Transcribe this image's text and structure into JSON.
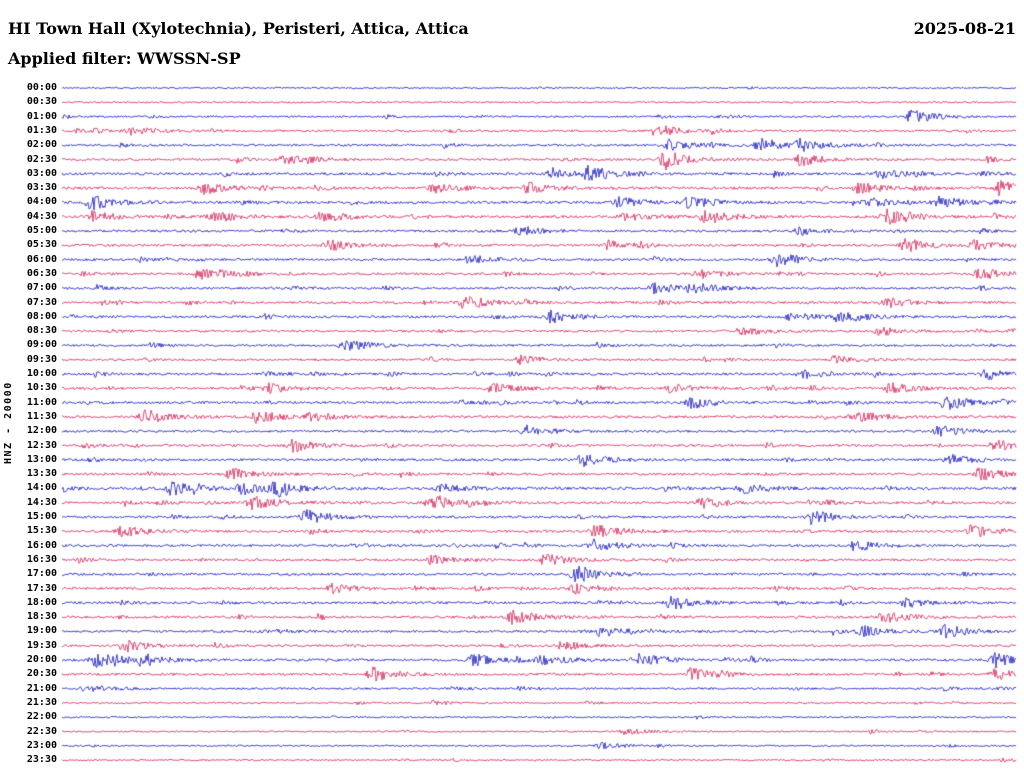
{
  "header": {
    "station_title": "HI Town Hall (Xylotechnia), Peristeri, Attica, Attica",
    "date": "2025-08-21",
    "filter_label": "Applied filter: WWSSN-SP"
  },
  "yaxis_label": "HNZ - 20000",
  "colors": {
    "blue": "#0a0ac0",
    "red": "#d5144e",
    "text": "#000000",
    "background": "#ffffff"
  },
  "chart_data": {
    "type": "helicorder",
    "title": "HI Town Hall (Xylotechnia), Peristeri, Attica, Attica",
    "date": "2025-08-21",
    "filter": "WWSSN-SP",
    "channel": "HNZ",
    "amplitude_scale": 20000,
    "minutes_per_row": 30,
    "row_count": 48,
    "color_cycle": [
      "blue",
      "red"
    ],
    "grid": false,
    "legend": "none",
    "seed": 20250821,
    "note": "Continuous seismic drum recording; 48 half-hour traces alternating blue/red; values are relative ground-motion noise with transient bursts (activity 0-1, burst amp 0-1 at fractional x position).",
    "rows": [
      {
        "time": "00:00",
        "color": "blue",
        "activity": 0.25
      },
      {
        "time": "00:30",
        "color": "red",
        "activity": 0.3
      },
      {
        "time": "01:00",
        "color": "blue",
        "activity": 0.35
      },
      {
        "time": "01:30",
        "color": "red",
        "activity": 0.45
      },
      {
        "time": "02:00",
        "color": "blue",
        "activity": 0.5
      },
      {
        "time": "02:30",
        "color": "red",
        "activity": 0.55
      },
      {
        "time": "03:00",
        "color": "blue",
        "activity": 0.6
      },
      {
        "time": "03:30",
        "color": "red",
        "activity": 0.65
      },
      {
        "time": "04:00",
        "color": "blue",
        "activity": 0.65
      },
      {
        "time": "04:30",
        "color": "red",
        "activity": 0.65
      },
      {
        "time": "05:00",
        "color": "blue",
        "activity": 0.5
      },
      {
        "time": "05:30",
        "color": "red",
        "activity": 0.55
      },
      {
        "time": "06:00",
        "color": "blue",
        "activity": 0.55
      },
      {
        "time": "06:30",
        "color": "red",
        "activity": 0.55
      },
      {
        "time": "07:00",
        "color": "blue",
        "activity": 0.5
      },
      {
        "time": "07:30",
        "color": "red",
        "activity": 0.55
      },
      {
        "time": "08:00",
        "color": "blue",
        "activity": 0.55
      },
      {
        "time": "08:30",
        "color": "red",
        "activity": 0.5
      },
      {
        "time": "09:00",
        "color": "blue",
        "activity": 0.5
      },
      {
        "time": "09:30",
        "color": "red",
        "activity": 0.45
      },
      {
        "time": "10:00",
        "color": "blue",
        "activity": 0.55
      },
      {
        "time": "10:30",
        "color": "red",
        "activity": 0.55
      },
      {
        "time": "11:00",
        "color": "blue",
        "activity": 0.55
      },
      {
        "time": "11:30",
        "color": "red",
        "activity": 0.6
      },
      {
        "time": "12:00",
        "color": "blue",
        "activity": 0.5
      },
      {
        "time": "12:30",
        "color": "red",
        "activity": 0.55
      },
      {
        "time": "13:00",
        "color": "blue",
        "activity": 0.6
      },
      {
        "time": "13:30",
        "color": "red",
        "activity": 0.55
      },
      {
        "time": "14:00",
        "color": "blue",
        "activity": 0.65
      },
      {
        "time": "14:30",
        "color": "red",
        "activity": 0.6
      },
      {
        "time": "15:00",
        "color": "blue",
        "activity": 0.55
      },
      {
        "time": "15:30",
        "color": "red",
        "activity": 0.6
      },
      {
        "time": "16:00",
        "color": "blue",
        "activity": 0.55
      },
      {
        "time": "16:30",
        "color": "red",
        "activity": 0.55
      },
      {
        "time": "17:00",
        "color": "blue",
        "activity": 0.55
      },
      {
        "time": "17:30",
        "color": "red",
        "activity": 0.55
      },
      {
        "time": "18:00",
        "color": "blue",
        "activity": 0.55
      },
      {
        "time": "18:30",
        "color": "red",
        "activity": 0.55
      },
      {
        "time": "19:00",
        "color": "blue",
        "activity": 0.55
      },
      {
        "time": "19:30",
        "color": "red",
        "activity": 0.5
      },
      {
        "time": "20:00",
        "color": "blue",
        "activity": 0.6
      },
      {
        "time": "20:30",
        "color": "red",
        "activity": 0.55
      },
      {
        "time": "21:00",
        "color": "blue",
        "activity": 0.4
      },
      {
        "time": "21:30",
        "color": "red",
        "activity": 0.3
      },
      {
        "time": "22:00",
        "color": "blue",
        "activity": 0.3
      },
      {
        "time": "22:30",
        "color": "red",
        "activity": 0.25
      },
      {
        "time": "23:00",
        "color": "blue",
        "activity": 0.25
      },
      {
        "time": "23:30",
        "color": "red",
        "activity": 0.3
      }
    ],
    "events": [
      {
        "row": 2,
        "frac": 0.891,
        "amp": 0.85
      },
      {
        "row": 3,
        "frac": 0.071,
        "amp": 0.5
      },
      {
        "row": 3,
        "frac": 0.622,
        "amp": 0.6
      },
      {
        "row": 4,
        "frac": 0.637,
        "amp": 0.6
      },
      {
        "row": 4,
        "frac": 0.732,
        "amp": 0.8
      },
      {
        "row": 4,
        "frac": 0.774,
        "amp": 0.6
      },
      {
        "row": 5,
        "frac": 0.234,
        "amp": 0.5
      },
      {
        "row": 5,
        "frac": 0.632,
        "amp": 0.9
      },
      {
        "row": 5,
        "frac": 0.774,
        "amp": 0.7
      },
      {
        "row": 6,
        "frac": 0.515,
        "amp": 0.6
      },
      {
        "row": 6,
        "frac": 0.553,
        "amp": 0.8
      },
      {
        "row": 6,
        "frac": 0.857,
        "amp": 0.5
      },
      {
        "row": 7,
        "frac": 0.15,
        "amp": 0.7
      },
      {
        "row": 7,
        "frac": 0.391,
        "amp": 0.55
      },
      {
        "row": 7,
        "frac": 0.49,
        "amp": 0.65
      },
      {
        "row": 7,
        "frac": 0.836,
        "amp": 0.6
      },
      {
        "row": 7,
        "frac": 0.985,
        "amp": 0.7
      },
      {
        "row": 8,
        "frac": 0.031,
        "amp": 0.8
      },
      {
        "row": 8,
        "frac": 0.585,
        "amp": 0.55
      },
      {
        "row": 8,
        "frac": 0.658,
        "amp": 0.65
      },
      {
        "row": 8,
        "frac": 0.849,
        "amp": 0.55
      },
      {
        "row": 8,
        "frac": 0.92,
        "amp": 0.65
      },
      {
        "row": 9,
        "frac": 0.031,
        "amp": 0.6
      },
      {
        "row": 9,
        "frac": 0.155,
        "amp": 0.5
      },
      {
        "row": 9,
        "frac": 0.273,
        "amp": 0.6
      },
      {
        "row": 9,
        "frac": 0.587,
        "amp": 0.5
      },
      {
        "row": 9,
        "frac": 0.675,
        "amp": 0.8
      },
      {
        "row": 9,
        "frac": 0.864,
        "amp": 0.85
      },
      {
        "row": 10,
        "frac": 0.48,
        "amp": 0.4
      },
      {
        "row": 10,
        "frac": 0.774,
        "amp": 0.4
      },
      {
        "row": 11,
        "frac": 0.281,
        "amp": 0.6
      },
      {
        "row": 11,
        "frac": 0.574,
        "amp": 0.5
      },
      {
        "row": 11,
        "frac": 0.884,
        "amp": 0.7
      },
      {
        "row": 11,
        "frac": 0.957,
        "amp": 0.55
      },
      {
        "row": 12,
        "frac": 0.428,
        "amp": 0.5
      },
      {
        "row": 12,
        "frac": 0.75,
        "amp": 0.8
      },
      {
        "row": 13,
        "frac": 0.145,
        "amp": 0.6
      },
      {
        "row": 13,
        "frac": 0.669,
        "amp": 0.5
      },
      {
        "row": 13,
        "frac": 0.962,
        "amp": 0.5
      },
      {
        "row": 14,
        "frac": 0.622,
        "amp": 0.6
      },
      {
        "row": 14,
        "frac": 0.66,
        "amp": 0.6
      },
      {
        "row": 15,
        "frac": 0.422,
        "amp": 0.7
      },
      {
        "row": 15,
        "frac": 0.863,
        "amp": 0.6
      },
      {
        "row": 16,
        "frac": 0.512,
        "amp": 0.7
      },
      {
        "row": 16,
        "frac": 0.765,
        "amp": 0.5
      },
      {
        "row": 16,
        "frac": 0.813,
        "amp": 0.8
      },
      {
        "row": 17,
        "frac": 0.713,
        "amp": 0.5
      },
      {
        "row": 17,
        "frac": 0.857,
        "amp": 0.45
      },
      {
        "row": 18,
        "frac": 0.297,
        "amp": 0.7
      },
      {
        "row": 19,
        "frac": 0.48,
        "amp": 0.5
      },
      {
        "row": 19,
        "frac": 0.81,
        "amp": 0.4
      },
      {
        "row": 20,
        "frac": 0.774,
        "amp": 0.6
      },
      {
        "row": 20,
        "frac": 0.971,
        "amp": 0.5
      },
      {
        "row": 21,
        "frac": 0.218,
        "amp": 0.5
      },
      {
        "row": 21,
        "frac": 0.449,
        "amp": 0.6
      },
      {
        "row": 21,
        "frac": 0.639,
        "amp": 0.5
      },
      {
        "row": 21,
        "frac": 0.868,
        "amp": 0.6
      },
      {
        "row": 22,
        "frac": 0.66,
        "amp": 0.7
      },
      {
        "row": 22,
        "frac": 0.926,
        "amp": 0.8
      },
      {
        "row": 23,
        "frac": 0.087,
        "amp": 0.8
      },
      {
        "row": 23,
        "frac": 0.205,
        "amp": 0.7
      },
      {
        "row": 23,
        "frac": 0.262,
        "amp": 0.5
      },
      {
        "row": 23,
        "frac": 0.839,
        "amp": 0.5
      },
      {
        "row": 24,
        "frac": 0.488,
        "amp": 0.6
      },
      {
        "row": 24,
        "frac": 0.92,
        "amp": 0.6
      },
      {
        "row": 25,
        "frac": 0.241,
        "amp": 0.7
      },
      {
        "row": 25,
        "frac": 0.978,
        "amp": 0.6
      },
      {
        "row": 26,
        "frac": 0.545,
        "amp": 0.7
      },
      {
        "row": 26,
        "frac": 0.931,
        "amp": 0.6
      },
      {
        "row": 27,
        "frac": 0.178,
        "amp": 0.6
      },
      {
        "row": 27,
        "frac": 0.962,
        "amp": 0.7
      },
      {
        "row": 28,
        "frac": 0.115,
        "amp": 0.75
      },
      {
        "row": 28,
        "frac": 0.189,
        "amp": 0.7
      },
      {
        "row": 28,
        "frac": 0.224,
        "amp": 0.9
      },
      {
        "row": 28,
        "frac": 0.398,
        "amp": 0.5
      },
      {
        "row": 28,
        "frac": 0.713,
        "amp": 0.6
      },
      {
        "row": 29,
        "frac": 0.199,
        "amp": 0.8
      },
      {
        "row": 29,
        "frac": 0.392,
        "amp": 0.6
      },
      {
        "row": 29,
        "frac": 0.671,
        "amp": 0.6
      },
      {
        "row": 30,
        "frac": 0.256,
        "amp": 0.8
      },
      {
        "row": 30,
        "frac": 0.786,
        "amp": 0.7
      },
      {
        "row": 31,
        "frac": 0.063,
        "amp": 0.6
      },
      {
        "row": 31,
        "frac": 0.56,
        "amp": 0.8
      },
      {
        "row": 31,
        "frac": 0.954,
        "amp": 0.7
      },
      {
        "row": 32,
        "frac": 0.556,
        "amp": 0.7
      },
      {
        "row": 32,
        "frac": 0.832,
        "amp": 0.6
      },
      {
        "row": 33,
        "frac": 0.388,
        "amp": 0.5
      },
      {
        "row": 33,
        "frac": 0.507,
        "amp": 0.6
      },
      {
        "row": 34,
        "frac": 0.539,
        "amp": 0.8
      },
      {
        "row": 35,
        "frac": 0.283,
        "amp": 0.5
      },
      {
        "row": 35,
        "frac": 0.539,
        "amp": 0.6
      },
      {
        "row": 36,
        "frac": 0.639,
        "amp": 0.8
      },
      {
        "row": 36,
        "frac": 0.885,
        "amp": 0.5
      },
      {
        "row": 37,
        "frac": 0.472,
        "amp": 0.8
      },
      {
        "row": 37,
        "frac": 0.86,
        "amp": 0.7
      },
      {
        "row": 38,
        "frac": 0.566,
        "amp": 0.6
      },
      {
        "row": 38,
        "frac": 0.839,
        "amp": 0.6
      },
      {
        "row": 38,
        "frac": 0.927,
        "amp": 0.7
      },
      {
        "row": 39,
        "frac": 0.063,
        "amp": 0.6
      },
      {
        "row": 39,
        "frac": 0.524,
        "amp": 0.5
      },
      {
        "row": 40,
        "frac": 0.036,
        "amp": 0.9
      },
      {
        "row": 40,
        "frac": 0.084,
        "amp": 0.6
      },
      {
        "row": 40,
        "frac": 0.43,
        "amp": 0.7
      },
      {
        "row": 40,
        "frac": 0.503,
        "amp": 0.6
      },
      {
        "row": 40,
        "frac": 0.608,
        "amp": 0.7
      },
      {
        "row": 40,
        "frac": 0.979,
        "amp": 0.8
      },
      {
        "row": 41,
        "frac": 0.325,
        "amp": 0.8
      },
      {
        "row": 41,
        "frac": 0.66,
        "amp": 0.7
      },
      {
        "row": 41,
        "frac": 0.979,
        "amp": 0.6
      },
      {
        "row": 42,
        "frac": 0.025,
        "amp": 0.5
      },
      {
        "row": 45,
        "frac": 0.591,
        "amp": 0.4
      },
      {
        "row": 46,
        "frac": 0.566,
        "amp": 0.35
      }
    ]
  }
}
